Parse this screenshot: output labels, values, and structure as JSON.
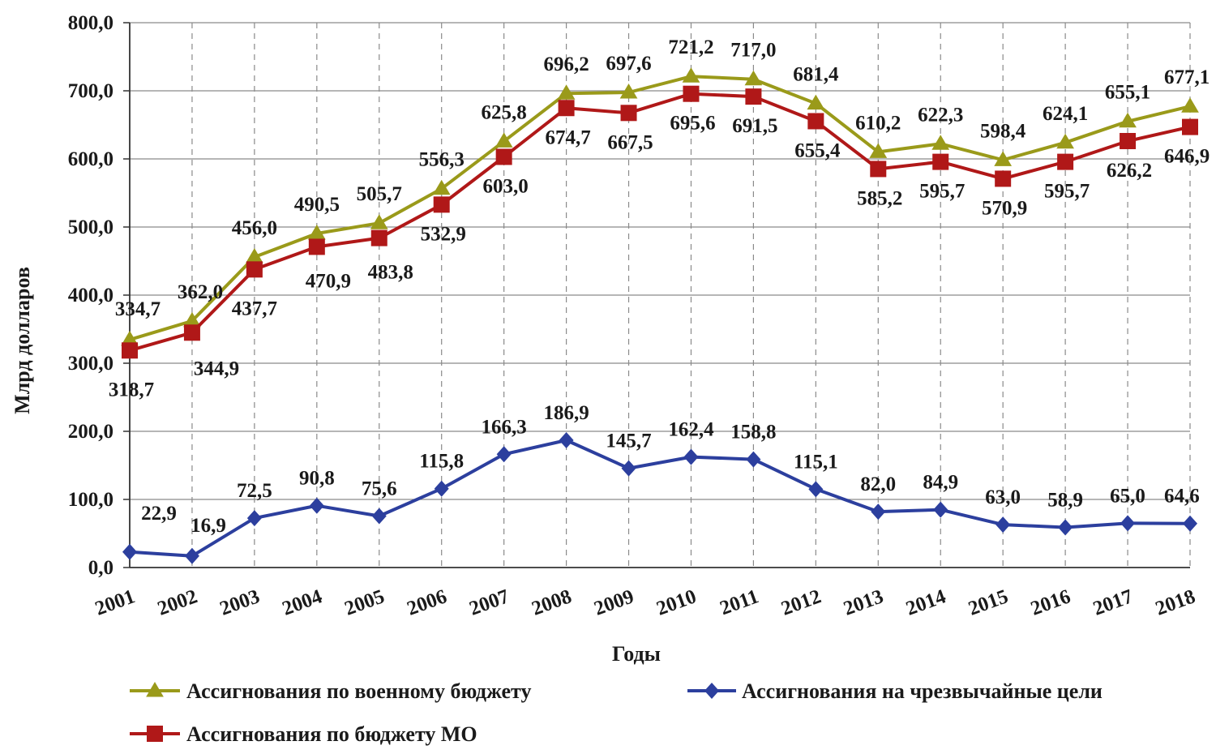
{
  "chart_data": {
    "type": "line",
    "title": "",
    "xlabel": "Годы",
    "ylabel": "Млрд долларов",
    "ylim": [
      0,
      800
    ],
    "yticks": [
      "0,0",
      "100,0",
      "200,0",
      "300,0",
      "400,0",
      "500,0",
      "600,0",
      "700,0",
      "800,0"
    ],
    "categories": [
      "2001",
      "2002",
      "2003",
      "2004",
      "2005",
      "2006",
      "2007",
      "2008",
      "2009",
      "2010",
      "2011",
      "2012",
      "2013",
      "2014",
      "2015",
      "2016",
      "2017",
      "2018"
    ],
    "grid": true,
    "legend_position": "bottom",
    "series": [
      {
        "key": "military",
        "name": "Ассигнования по военному бюджету",
        "color": "#9a9a1a",
        "marker": "triangle",
        "values": [
          334.7,
          362.0,
          456.0,
          490.5,
          505.7,
          556.3,
          625.8,
          696.2,
          697.6,
          721.2,
          717.0,
          681.4,
          610.2,
          622.3,
          598.4,
          624.1,
          655.1,
          677.1
        ],
        "labels": [
          "334,7",
          "362,0",
          "456,0",
          "490,5",
          "505,7",
          "556,3",
          "625,8",
          "696,2",
          "697,6",
          "721,2",
          "717,0",
          "681,4",
          "610,2",
          "622,3",
          "598,4",
          "624,1",
          "655,1",
          "677,1"
        ]
      },
      {
        "key": "mo",
        "name": "Ассигнования по бюджету МО",
        "color": "#b01818",
        "marker": "square",
        "values": [
          318.7,
          344.9,
          437.7,
          470.9,
          483.8,
          532.9,
          603.0,
          674.7,
          667.5,
          695.6,
          691.5,
          655.4,
          585.2,
          595.7,
          570.9,
          595.7,
          626.2,
          646.9
        ],
        "labels": [
          "318,7",
          "344,9",
          "437,7",
          "470,9",
          "483,8",
          "532,9",
          "603,0",
          "674,7",
          "667,5",
          "695,6",
          "691,5",
          "655,4",
          "585,2",
          "595,7",
          "570,9",
          "595,7",
          "626,2",
          "646,9"
        ]
      },
      {
        "key": "emergency",
        "name": "Ассигнования на чрезвычайные цели",
        "color": "#2c3f9e",
        "marker": "diamond",
        "values": [
          22.9,
          16.9,
          72.5,
          90.8,
          75.6,
          115.8,
          166.3,
          186.9,
          145.7,
          162.4,
          158.8,
          115.1,
          82.0,
          84.9,
          63.0,
          58.9,
          65.0,
          64.6
        ],
        "labels": [
          "22,9",
          "16,9",
          "72,5",
          "90,8",
          "75,6",
          "115,8",
          "166,3",
          "186,9",
          "145,7",
          "162,4",
          "158,8",
          "115,1",
          "82,0",
          "84,9",
          "63,0",
          "58,9",
          "65,0",
          "64,6"
        ]
      }
    ]
  }
}
